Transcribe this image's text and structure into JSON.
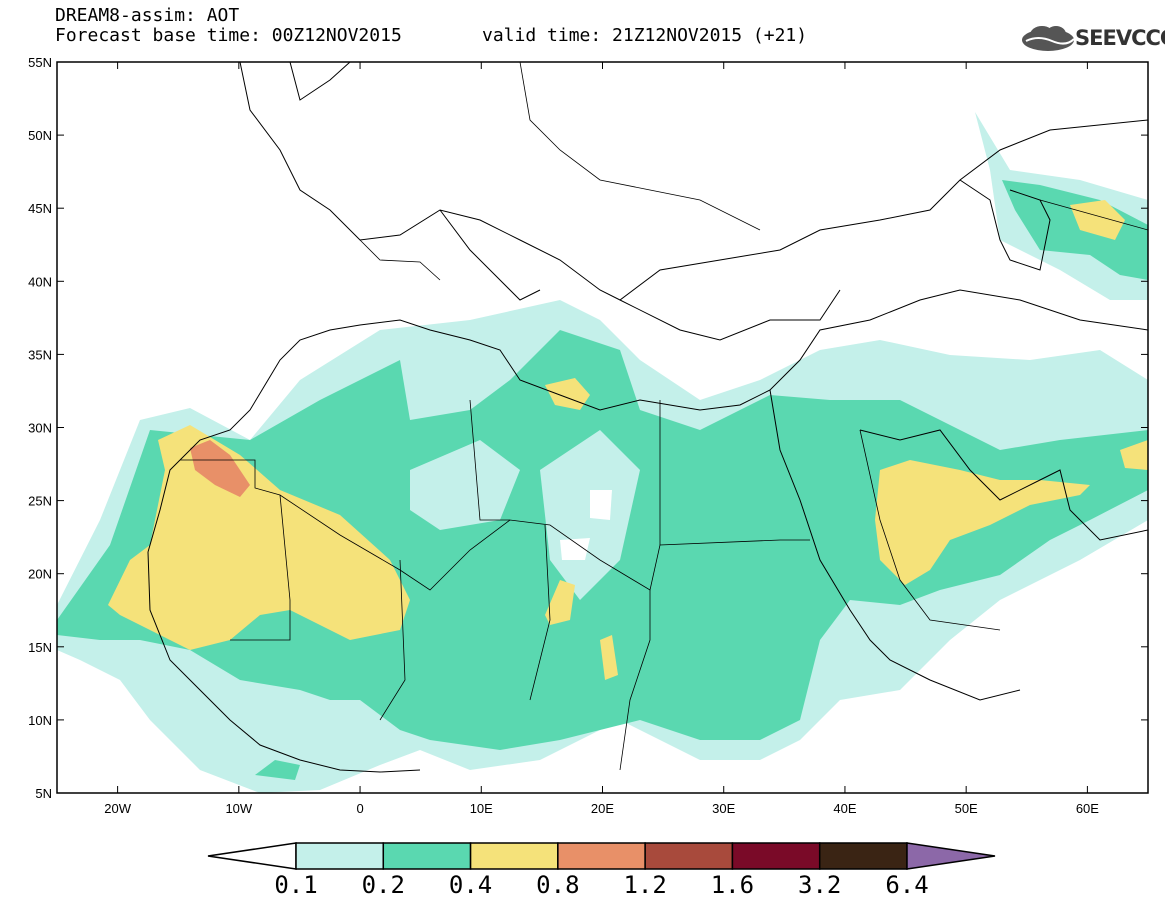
{
  "header": {
    "line1": "DREAM8-assim: AOT",
    "line2": "Forecast base time: 00Z12NOV2015",
    "line3": "valid time: 21Z12NOV2015 (+21)",
    "logo": "SEEVCCC"
  },
  "axes": {
    "lat_labels": [
      "55N",
      "50N",
      "45N",
      "40N",
      "35N",
      "30N",
      "25N",
      "20N",
      "15N",
      "10N",
      "5N"
    ],
    "lon_labels": [
      "20W",
      "10W",
      "0",
      "10E",
      "20E",
      "30E",
      "40E",
      "50E",
      "60E"
    ],
    "lat_range": [
      5,
      55
    ],
    "lon_range": [
      -25,
      65
    ]
  },
  "legend": {
    "labels": [
      "0.1",
      "0.2",
      "0.4",
      "0.8",
      "1.2",
      "1.6",
      "3.2",
      "6.4"
    ],
    "colors": [
      "#ffffff",
      "#c4f0ea",
      "#5ad8b0",
      "#f5e27a",
      "#e89068",
      "#a84a3c",
      "#7a0a28",
      "#3a2414",
      "#8c68a8"
    ]
  }
}
